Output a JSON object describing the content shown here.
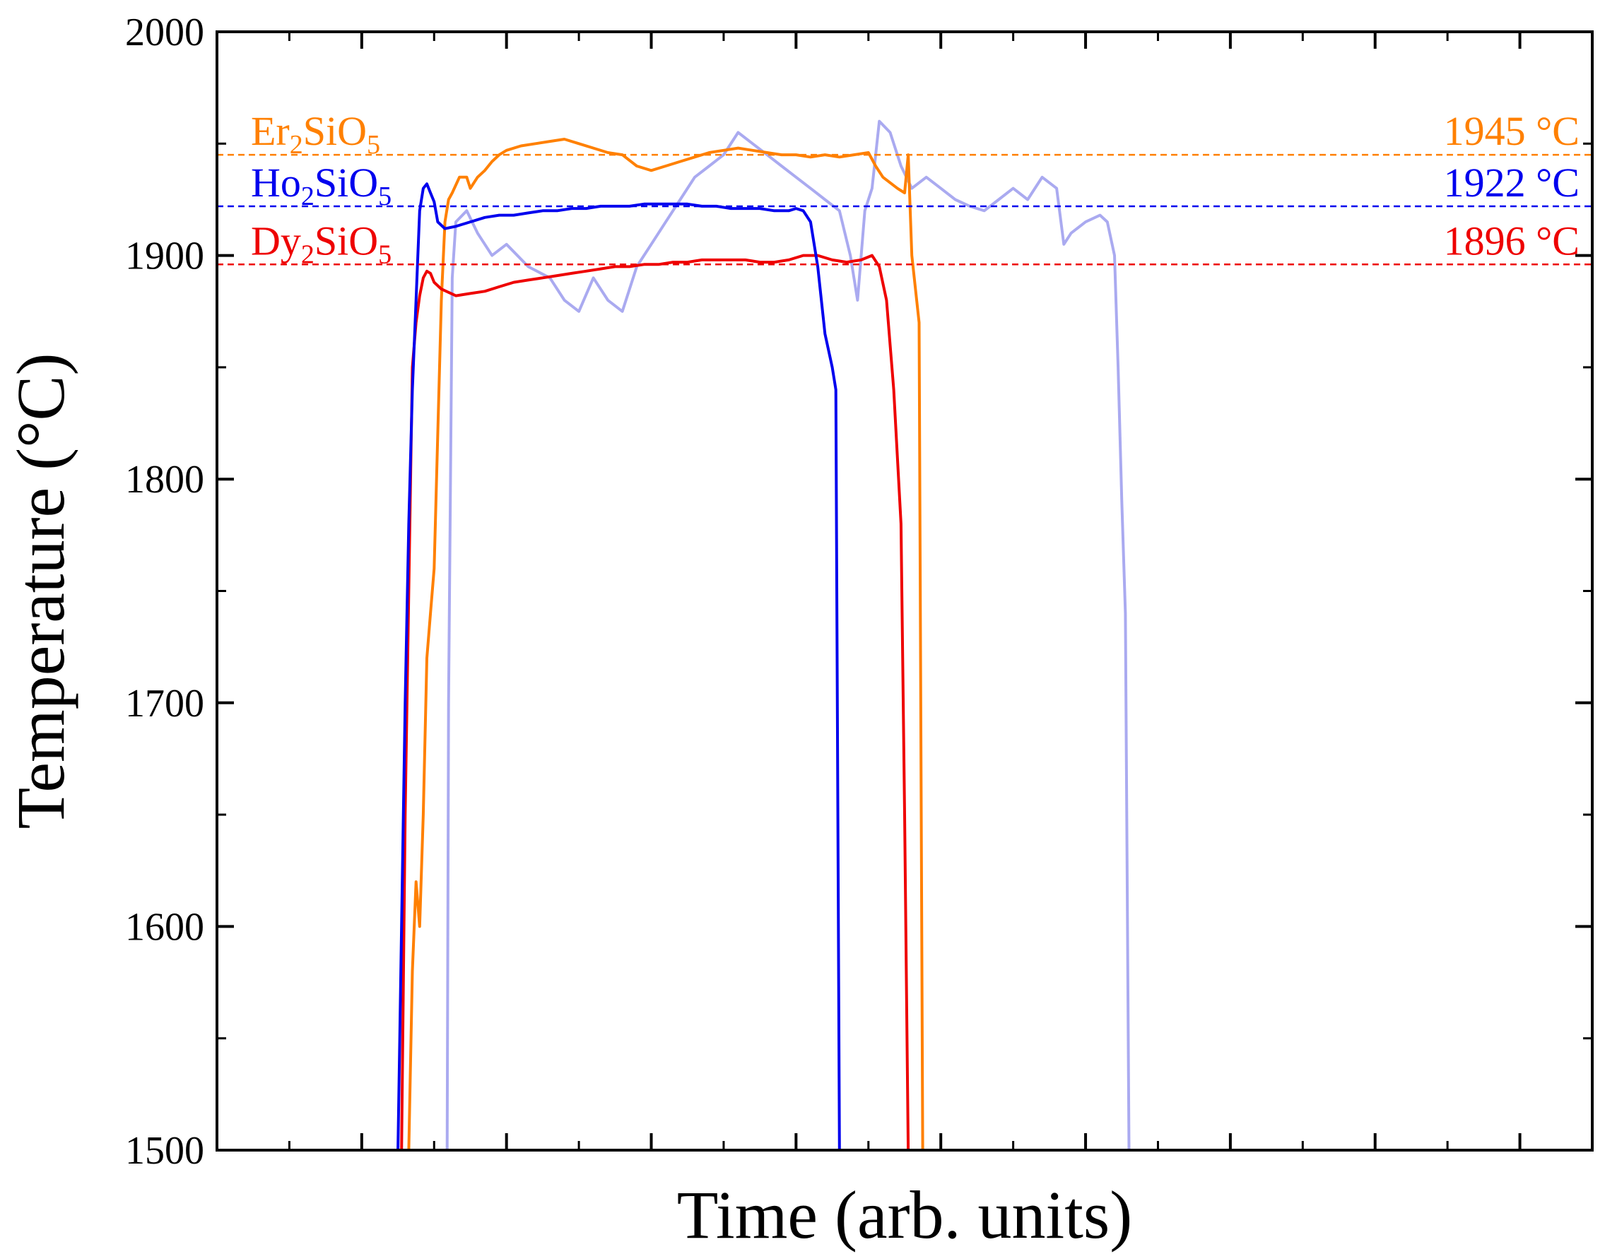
{
  "chart_data": {
    "type": "line",
    "title": "",
    "xlabel": "Time (arb. units)",
    "ylabel": "Temperature (°C)",
    "xlim": [
      0,
      19
    ],
    "ylim": [
      1500,
      2000
    ],
    "yticks": [
      1500,
      1600,
      1700,
      1800,
      1900,
      2000
    ],
    "ytick_labels": [
      "1500",
      "1600",
      "1700",
      "1800",
      "1900",
      "2000"
    ],
    "xticks_count": 19,
    "grid": false,
    "reference_lines": [
      {
        "name": "Er2SiO5",
        "value": 1945,
        "label": "1945 °C",
        "color": "#ff8000"
      },
      {
        "name": "Ho2SiO5",
        "value": 1922,
        "label": "1922 °C",
        "color": "#0000ee"
      },
      {
        "name": "Dy2SiO5",
        "value": 1896,
        "label": "1896 °C",
        "color": "#ee0000"
      }
    ],
    "compound_labels": [
      {
        "base": "Er",
        "n1": "2",
        "mid": "SiO",
        "n2": "5",
        "color": "#ff8000"
      },
      {
        "base": "Ho",
        "n1": "2",
        "mid": "SiO",
        "n2": "5",
        "color": "#0000ee"
      },
      {
        "base": "Dy",
        "n1": "2",
        "mid": "SiO",
        "n2": "5",
        "color": "#ee0000"
      }
    ],
    "series": [
      {
        "name": "Background trace (light blue)",
        "color": "#aaaaf0",
        "points": [
          [
            3.18,
            1500
          ],
          [
            3.2,
            1700
          ],
          [
            3.25,
            1890
          ],
          [
            3.3,
            1915
          ],
          [
            3.45,
            1920
          ],
          [
            3.6,
            1910
          ],
          [
            3.8,
            1900
          ],
          [
            4.0,
            1905
          ],
          [
            4.3,
            1895
          ],
          [
            4.6,
            1890
          ],
          [
            4.8,
            1880
          ],
          [
            5.0,
            1875
          ],
          [
            5.2,
            1890
          ],
          [
            5.4,
            1880
          ],
          [
            5.6,
            1875
          ],
          [
            5.8,
            1895
          ],
          [
            6.0,
            1905
          ],
          [
            6.2,
            1915
          ],
          [
            6.4,
            1925
          ],
          [
            6.6,
            1935
          ],
          [
            6.8,
            1940
          ],
          [
            7.0,
            1945
          ],
          [
            7.2,
            1955
          ],
          [
            7.4,
            1950
          ],
          [
            7.6,
            1945
          ],
          [
            7.8,
            1940
          ],
          [
            8.0,
            1935
          ],
          [
            8.2,
            1930
          ],
          [
            8.4,
            1925
          ],
          [
            8.6,
            1920
          ],
          [
            8.75,
            1900
          ],
          [
            8.85,
            1880
          ],
          [
            8.95,
            1920
          ],
          [
            9.05,
            1930
          ],
          [
            9.15,
            1960
          ],
          [
            9.3,
            1955
          ],
          [
            9.45,
            1940
          ],
          [
            9.6,
            1930
          ],
          [
            9.8,
            1935
          ],
          [
            10.0,
            1930
          ],
          [
            10.2,
            1925
          ],
          [
            10.4,
            1922
          ],
          [
            10.6,
            1920
          ],
          [
            10.8,
            1925
          ],
          [
            11.0,
            1930
          ],
          [
            11.2,
            1925
          ],
          [
            11.4,
            1935
          ],
          [
            11.6,
            1930
          ],
          [
            11.7,
            1905
          ],
          [
            11.8,
            1910
          ],
          [
            12.0,
            1915
          ],
          [
            12.2,
            1918
          ],
          [
            12.3,
            1915
          ],
          [
            12.4,
            1900
          ],
          [
            12.45,
            1850
          ],
          [
            12.5,
            1790
          ],
          [
            12.55,
            1740
          ],
          [
            12.6,
            1500
          ]
        ]
      },
      {
        "name": "Er2SiO5",
        "color": "#ff8000",
        "points": [
          [
            2.65,
            1500
          ],
          [
            2.7,
            1580
          ],
          [
            2.75,
            1620
          ],
          [
            2.8,
            1600
          ],
          [
            2.85,
            1650
          ],
          [
            2.9,
            1720
          ],
          [
            2.95,
            1740
          ],
          [
            3.0,
            1760
          ],
          [
            3.05,
            1820
          ],
          [
            3.1,
            1880
          ],
          [
            3.15,
            1915
          ],
          [
            3.2,
            1925
          ],
          [
            3.25,
            1928
          ],
          [
            3.35,
            1935
          ],
          [
            3.45,
            1935
          ],
          [
            3.5,
            1930
          ],
          [
            3.6,
            1935
          ],
          [
            3.7,
            1938
          ],
          [
            3.8,
            1942
          ],
          [
            3.9,
            1945
          ],
          [
            4.0,
            1947
          ],
          [
            4.2,
            1949
          ],
          [
            4.4,
            1950
          ],
          [
            4.6,
            1951
          ],
          [
            4.8,
            1952
          ],
          [
            5.0,
            1950
          ],
          [
            5.2,
            1948
          ],
          [
            5.4,
            1946
          ],
          [
            5.6,
            1945
          ],
          [
            5.8,
            1940
          ],
          [
            6.0,
            1938
          ],
          [
            6.2,
            1940
          ],
          [
            6.4,
            1942
          ],
          [
            6.6,
            1944
          ],
          [
            6.8,
            1946
          ],
          [
            7.0,
            1947
          ],
          [
            7.2,
            1948
          ],
          [
            7.4,
            1947
          ],
          [
            7.6,
            1946
          ],
          [
            7.8,
            1945
          ],
          [
            8.0,
            1945
          ],
          [
            8.2,
            1944
          ],
          [
            8.4,
            1945
          ],
          [
            8.6,
            1944
          ],
          [
            8.8,
            1945
          ],
          [
            9.0,
            1946
          ],
          [
            9.1,
            1940
          ],
          [
            9.2,
            1935
          ],
          [
            9.4,
            1930
          ],
          [
            9.5,
            1928
          ],
          [
            9.55,
            1945
          ],
          [
            9.6,
            1900
          ],
          [
            9.7,
            1870
          ],
          [
            9.75,
            1500
          ]
        ]
      },
      {
        "name": "Dy2SiO5",
        "color": "#ee0000",
        "points": [
          [
            2.55,
            1500
          ],
          [
            2.6,
            1650
          ],
          [
            2.65,
            1750
          ],
          [
            2.7,
            1850
          ],
          [
            2.75,
            1870
          ],
          [
            2.8,
            1882
          ],
          [
            2.85,
            1890
          ],
          [
            2.9,
            1893
          ],
          [
            2.95,
            1892
          ],
          [
            3.0,
            1888
          ],
          [
            3.1,
            1885
          ],
          [
            3.3,
            1882
          ],
          [
            3.5,
            1883
          ],
          [
            3.7,
            1884
          ],
          [
            3.9,
            1886
          ],
          [
            4.1,
            1888
          ],
          [
            4.3,
            1889
          ],
          [
            4.5,
            1890
          ],
          [
            4.7,
            1891
          ],
          [
            4.9,
            1892
          ],
          [
            5.1,
            1893
          ],
          [
            5.3,
            1894
          ],
          [
            5.5,
            1895
          ],
          [
            5.7,
            1895
          ],
          [
            5.9,
            1896
          ],
          [
            6.1,
            1896
          ],
          [
            6.3,
            1897
          ],
          [
            6.5,
            1897
          ],
          [
            6.7,
            1898
          ],
          [
            6.9,
            1898
          ],
          [
            7.1,
            1898
          ],
          [
            7.3,
            1898
          ],
          [
            7.5,
            1897
          ],
          [
            7.7,
            1897
          ],
          [
            7.9,
            1898
          ],
          [
            8.1,
            1900
          ],
          [
            8.3,
            1900
          ],
          [
            8.5,
            1898
          ],
          [
            8.7,
            1897
          ],
          [
            8.9,
            1898
          ],
          [
            9.05,
            1900
          ],
          [
            9.15,
            1895
          ],
          [
            9.25,
            1880
          ],
          [
            9.35,
            1840
          ],
          [
            9.45,
            1780
          ],
          [
            9.5,
            1650
          ],
          [
            9.55,
            1500
          ]
        ]
      },
      {
        "name": "Ho2SiO5",
        "color": "#0000ee",
        "points": [
          [
            2.5,
            1500
          ],
          [
            2.55,
            1600
          ],
          [
            2.6,
            1700
          ],
          [
            2.65,
            1780
          ],
          [
            2.7,
            1840
          ],
          [
            2.75,
            1880
          ],
          [
            2.8,
            1920
          ],
          [
            2.85,
            1930
          ],
          [
            2.9,
            1932
          ],
          [
            2.95,
            1928
          ],
          [
            3.0,
            1924
          ],
          [
            3.05,
            1915
          ],
          [
            3.15,
            1912
          ],
          [
            3.3,
            1913
          ],
          [
            3.5,
            1915
          ],
          [
            3.7,
            1917
          ],
          [
            3.9,
            1918
          ],
          [
            4.1,
            1918
          ],
          [
            4.3,
            1919
          ],
          [
            4.5,
            1920
          ],
          [
            4.7,
            1920
          ],
          [
            4.9,
            1921
          ],
          [
            5.1,
            1921
          ],
          [
            5.3,
            1922
          ],
          [
            5.5,
            1922
          ],
          [
            5.7,
            1922
          ],
          [
            5.9,
            1923
          ],
          [
            6.1,
            1923
          ],
          [
            6.3,
            1923
          ],
          [
            6.5,
            1923
          ],
          [
            6.7,
            1922
          ],
          [
            6.9,
            1922
          ],
          [
            7.1,
            1921
          ],
          [
            7.3,
            1921
          ],
          [
            7.5,
            1921
          ],
          [
            7.7,
            1920
          ],
          [
            7.9,
            1920
          ],
          [
            8.0,
            1921
          ],
          [
            8.1,
            1920
          ],
          [
            8.2,
            1915
          ],
          [
            8.3,
            1895
          ],
          [
            8.4,
            1865
          ],
          [
            8.5,
            1850
          ],
          [
            8.55,
            1840
          ],
          [
            8.6,
            1500
          ]
        ]
      }
    ]
  }
}
